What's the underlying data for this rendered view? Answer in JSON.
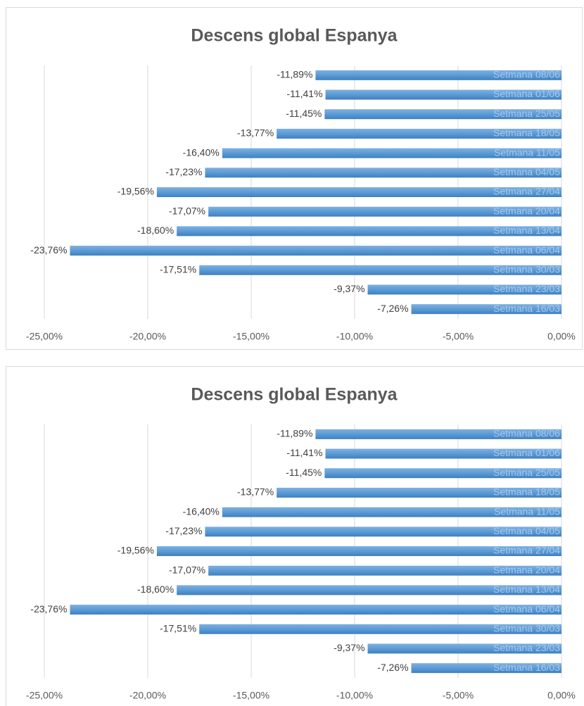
{
  "chart_data": [
    {
      "type": "bar",
      "orientation": "horizontal",
      "title": "Descens global Espanya",
      "categories": [
        "Setmana 08/06",
        "Setmana 01/06",
        "Setmana 25/05",
        "Setmana 18/05",
        "Setmana 11/05",
        "Setmana 04/05",
        "Setmana 27/04",
        "Setmana 20/04",
        "Setmana 13/04",
        "Setmana 06/04",
        "Setmana 30/03",
        "Setmana 23/03",
        "Setmana 16/03"
      ],
      "values": [
        -11.89,
        -11.41,
        -11.45,
        -13.77,
        -16.4,
        -17.23,
        -19.56,
        -17.07,
        -18.6,
        -23.76,
        -17.51,
        -9.37,
        -7.26
      ],
      "value_labels": [
        "-11,89%",
        "-11,41%",
        "-11,45%",
        "-13,77%",
        "-16,40%",
        "-17,23%",
        "-19,56%",
        "-17,07%",
        "-18,60%",
        "-23,76%",
        "-17,51%",
        "-9,37%",
        "-7,26%"
      ],
      "color": "#5b9bd5",
      "xlim": [
        -25,
        0
      ],
      "xticks": [
        {
          "value": -25,
          "label": "-25,00%"
        },
        {
          "value": -20,
          "label": "-20,00%"
        },
        {
          "value": -15,
          "label": "-15,00%"
        },
        {
          "value": -10,
          "label": "-10,00%"
        },
        {
          "value": -5,
          "label": "-5,00%"
        },
        {
          "value": 0,
          "label": "0,00%"
        }
      ],
      "grid": true
    },
    {
      "type": "bar",
      "orientation": "horizontal",
      "title": "Descens global Espanya",
      "categories": [
        "Setmana 08/06",
        "Setmana 01/06",
        "Setmana 25/05",
        "Setmana 18/05",
        "Setmana 11/05",
        "Setmana 04/05",
        "Setmana 27/04",
        "Setmana 20/04",
        "Setmana 13/04",
        "Setmana 06/04",
        "Setmana 30/03",
        "Setmana 23/03",
        "Setmana 16/03"
      ],
      "values": [
        -11.89,
        -11.41,
        -11.45,
        -13.77,
        -16.4,
        -17.23,
        -19.56,
        -17.07,
        -18.6,
        -23.76,
        -17.51,
        -9.37,
        -7.26
      ],
      "value_labels": [
        "-11,89%",
        "-11,41%",
        "-11,45%",
        "-13,77%",
        "-16,40%",
        "-17,23%",
        "-19,56%",
        "-17,07%",
        "-18,60%",
        "-23,76%",
        "-17,51%",
        "-9,37%",
        "-7,26%"
      ],
      "color": "#5b9bd5",
      "xlim": [
        -25,
        0
      ],
      "xticks": [
        {
          "value": -25,
          "label": "-25,00%"
        },
        {
          "value": -20,
          "label": "-20,00%"
        },
        {
          "value": -15,
          "label": "-15,00%"
        },
        {
          "value": -10,
          "label": "-10,00%"
        },
        {
          "value": -5,
          "label": "-5,00%"
        },
        {
          "value": 0,
          "label": "0,00%"
        }
      ],
      "grid": true
    }
  ]
}
